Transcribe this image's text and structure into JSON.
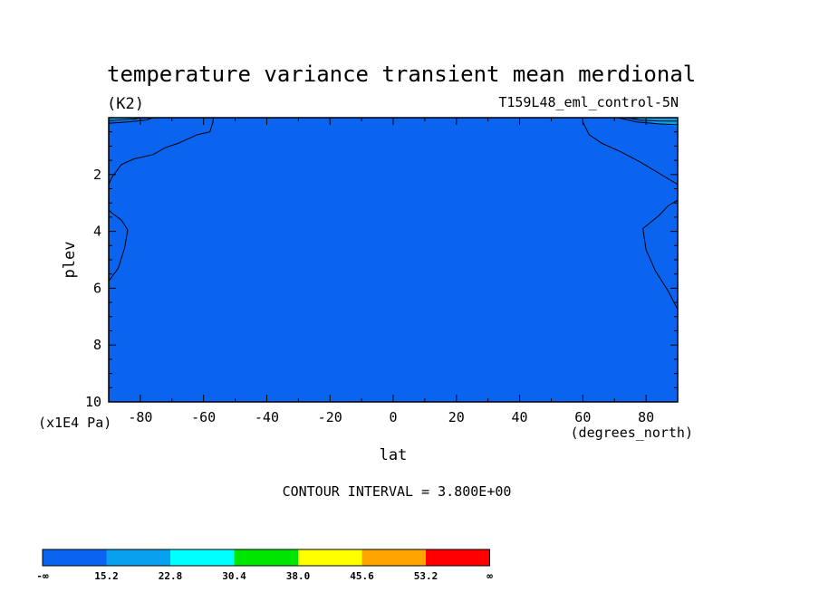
{
  "chart_data": {
    "type": "heatmap",
    "title": "temperature variance transient mean merdional",
    "units_label": "(K2)",
    "dataset_label": "T159L48_eml_control-5N",
    "xlabel": "lat",
    "xunit": "(degrees_north)",
    "ylabel": "plev",
    "yunit": "(x1E4 Pa)",
    "xlim": [
      -90,
      90
    ],
    "ylim": [
      10,
      0
    ],
    "x_ticks": [
      -80,
      -60,
      -40,
      -20,
      0,
      20,
      40,
      60,
      80
    ],
    "x_tick_labels": [
      "-80",
      "-60",
      "-40",
      "-20",
      "0",
      "20",
      "40",
      "60",
      "80"
    ],
    "y_ticks": [
      2,
      4,
      6,
      8,
      10
    ],
    "y_tick_labels": [
      "2",
      "4",
      "6",
      "8",
      "10"
    ],
    "contour_interval_text": "CONTOUR INTERVAL = 3.800E+00",
    "background_color": "#0a64f0",
    "colorbar": {
      "colors": [
        "#0a64f0",
        "#0aa0f0",
        "#00ffff",
        "#00e600",
        "#ffff00",
        "#ffa500",
        "#ff0000"
      ],
      "labels": [
        "-∞",
        "15.2",
        "22.8",
        "30.4",
        "38.0",
        "45.6",
        "53.2",
        "∞"
      ]
    },
    "contour_lines": [
      {
        "points": [
          [
            -90,
            2.35
          ],
          [
            -89,
            2.1
          ],
          [
            -88,
            1.95
          ],
          [
            -86,
            1.65
          ],
          [
            -82,
            1.45
          ],
          [
            -76,
            1.3
          ],
          [
            -72,
            1.05
          ],
          [
            -68,
            0.9
          ],
          [
            -62,
            0.6
          ],
          [
            -58,
            0.5
          ],
          [
            -57,
            0.15
          ],
          [
            -57,
            0.0
          ]
        ]
      },
      {
        "points": [
          [
            -90,
            3.25
          ],
          [
            -89,
            3.35
          ],
          [
            -86,
            3.6
          ],
          [
            -84,
            3.95
          ],
          [
            -85,
            4.6
          ],
          [
            -87,
            5.3
          ],
          [
            -90,
            5.75
          ]
        ]
      },
      {
        "points": [
          [
            60,
            0.0
          ],
          [
            60,
            0.15
          ],
          [
            62,
            0.6
          ],
          [
            66,
            0.9
          ],
          [
            72,
            1.2
          ],
          [
            78,
            1.55
          ],
          [
            84,
            1.95
          ],
          [
            90,
            2.35
          ]
        ]
      },
      {
        "points": [
          [
            90,
            2.9
          ],
          [
            87,
            3.1
          ],
          [
            84,
            3.45
          ],
          [
            79,
            3.9
          ],
          [
            80,
            4.65
          ],
          [
            83,
            5.4
          ],
          [
            87,
            6.1
          ],
          [
            90,
            6.75
          ]
        ]
      },
      {
        "points": [
          [
            -90,
            0.1
          ],
          [
            -82,
            0.05
          ],
          [
            -80,
            0.0
          ]
        ]
      },
      {
        "points": [
          [
            -90,
            0.2
          ],
          [
            -84,
            0.15
          ],
          [
            -78,
            0.08
          ],
          [
            -76,
            0.0
          ]
        ]
      },
      {
        "points": [
          [
            74,
            0.0
          ],
          [
            78,
            0.08
          ],
          [
            84,
            0.12
          ],
          [
            90,
            0.12
          ]
        ]
      },
      {
        "points": [
          [
            71,
            0.0
          ],
          [
            77,
            0.15
          ],
          [
            84,
            0.22
          ],
          [
            90,
            0.25
          ]
        ]
      }
    ],
    "contour_bands": [
      {
        "color": "#0aa0f0",
        "points": [
          [
            75,
            0.0
          ],
          [
            80,
            0.12
          ],
          [
            86,
            0.25
          ],
          [
            90,
            0.3
          ],
          [
            90,
            0.0
          ]
        ]
      },
      {
        "color": "#0aa0f0",
        "points": [
          [
            -90,
            0.0
          ],
          [
            -90,
            0.12
          ],
          [
            -83,
            0.1
          ],
          [
            -79,
            0.0
          ]
        ]
      }
    ]
  }
}
